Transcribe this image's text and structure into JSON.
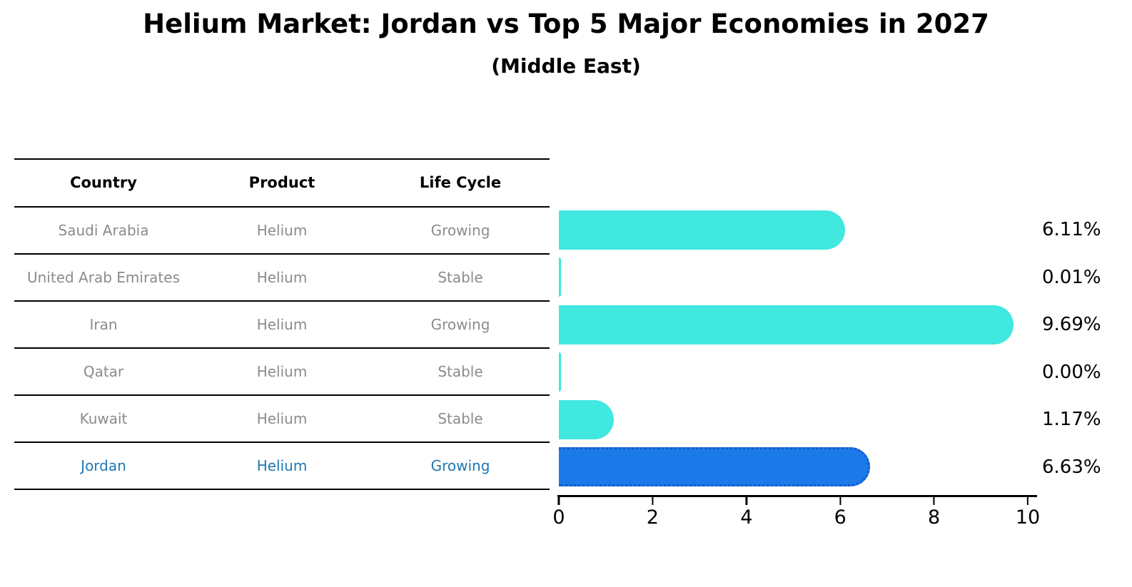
{
  "title": "Helium Market: Jordan vs Top 5 Major Economies in 2027",
  "subtitle": "(Middle East)",
  "colors": {
    "bar_default": "#40e8e0",
    "bar_highlight": "#1b7ae8",
    "bar_highlight_border": "#1559c9",
    "highlight_text": "#1f77b4",
    "row_text": "#8b8b8b"
  },
  "table": {
    "headers": [
      "Country",
      "Product",
      "Life Cycle"
    ],
    "rows": [
      {
        "country": "Saudi Arabia",
        "product": "Helium",
        "life_cycle": "Growing",
        "highlight": false
      },
      {
        "country": "United Arab Emirates",
        "product": "Helium",
        "life_cycle": "Stable",
        "highlight": false
      },
      {
        "country": "Iran",
        "product": "Helium",
        "life_cycle": "Growing",
        "highlight": false
      },
      {
        "country": "Qatar",
        "product": "Helium",
        "life_cycle": "Stable",
        "highlight": false
      },
      {
        "country": "Kuwait",
        "product": "Helium",
        "life_cycle": "Stable",
        "highlight": false
      },
      {
        "country": "Jordan",
        "product": "Helium",
        "life_cycle": "Growing",
        "highlight": true
      }
    ]
  },
  "chart_data": {
    "type": "bar",
    "orientation": "horizontal",
    "title": "Helium Market: Jordan vs Top 5 Major Economies in 2027",
    "subtitle": "(Middle East)",
    "categories": [
      "Saudi Arabia",
      "United Arab Emirates",
      "Iran",
      "Qatar",
      "Kuwait",
      "Jordan"
    ],
    "values": [
      6.11,
      0.01,
      9.69,
      0.0,
      1.17,
      6.63
    ],
    "value_labels": [
      "6.11%",
      "0.01%",
      "9.69%",
      "0.00%",
      "1.17%",
      "6.63%"
    ],
    "highlight_index": 5,
    "xlabel": "",
    "ylabel": "",
    "xlim": [
      0,
      10
    ],
    "x_ticks": [
      0,
      2,
      4,
      6,
      8,
      10
    ],
    "grid": false,
    "legend": false
  }
}
